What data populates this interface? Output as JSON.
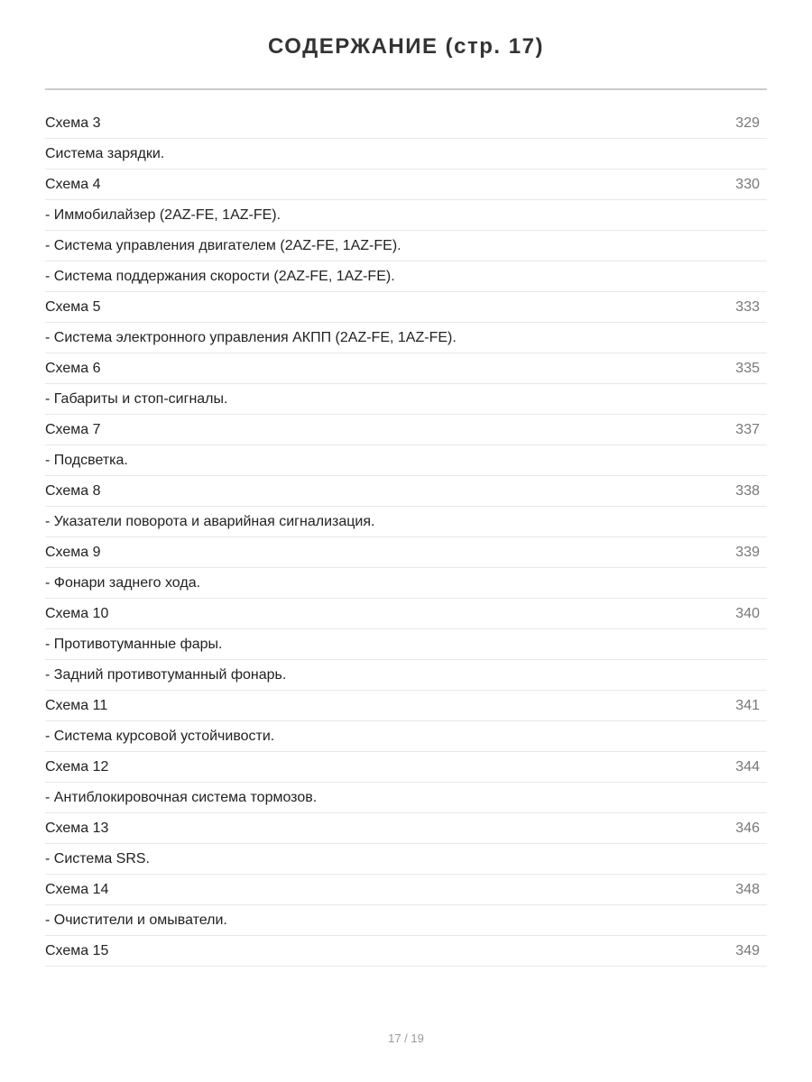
{
  "title": "СОДЕРЖАНИЕ (стр. 17)",
  "entries": [
    {
      "label": "Схема 3",
      "page": "329"
    },
    {
      "label": "Система зарядки.",
      "page": ""
    },
    {
      "label": "Схема 4",
      "page": "330"
    },
    {
      "label": "- Иммобилайзер (2AZ-FE, 1AZ-FE).",
      "page": ""
    },
    {
      "label": "- Система управления двигателем (2AZ-FE, 1AZ-FE).",
      "page": ""
    },
    {
      "label": "- Система поддержания скорости (2AZ-FE, 1AZ-FE).",
      "page": ""
    },
    {
      "label": "Схема 5",
      "page": "333"
    },
    {
      "label": "- Система электронного управления АКПП (2AZ-FE, 1AZ-FE).",
      "page": ""
    },
    {
      "label": "Схема 6",
      "page": "335"
    },
    {
      "label": "- Габариты и стоп-сигналы.",
      "page": ""
    },
    {
      "label": "Схема 7",
      "page": "337"
    },
    {
      "label": "- Подсветка.",
      "page": ""
    },
    {
      "label": "Схема 8",
      "page": "338"
    },
    {
      "label": "- Указатели поворота и аварийная сигнализация.",
      "page": ""
    },
    {
      "label": "Схема 9",
      "page": "339"
    },
    {
      "label": "- Фонари заднего хода.",
      "page": ""
    },
    {
      "label": "Схема 10",
      "page": "340"
    },
    {
      "label": "- Противотуманные фары.",
      "page": ""
    },
    {
      "label": "- Задний противотуманный фонарь.",
      "page": ""
    },
    {
      "label": "Схема 11",
      "page": "341"
    },
    {
      "label": "- Система курсовой устойчивости.",
      "page": ""
    },
    {
      "label": "Схема 12",
      "page": "344"
    },
    {
      "label": "- Антиблокировочная система тормозов.",
      "page": ""
    },
    {
      "label": "Схема 13",
      "page": "346"
    },
    {
      "label": "- Система SRS.",
      "page": ""
    },
    {
      "label": "Схема 14",
      "page": "348"
    },
    {
      "label": "- Очистители и омыватели.",
      "page": ""
    },
    {
      "label": "Схема 15",
      "page": "349"
    }
  ],
  "footer": {
    "pagination": "17 / 19"
  }
}
